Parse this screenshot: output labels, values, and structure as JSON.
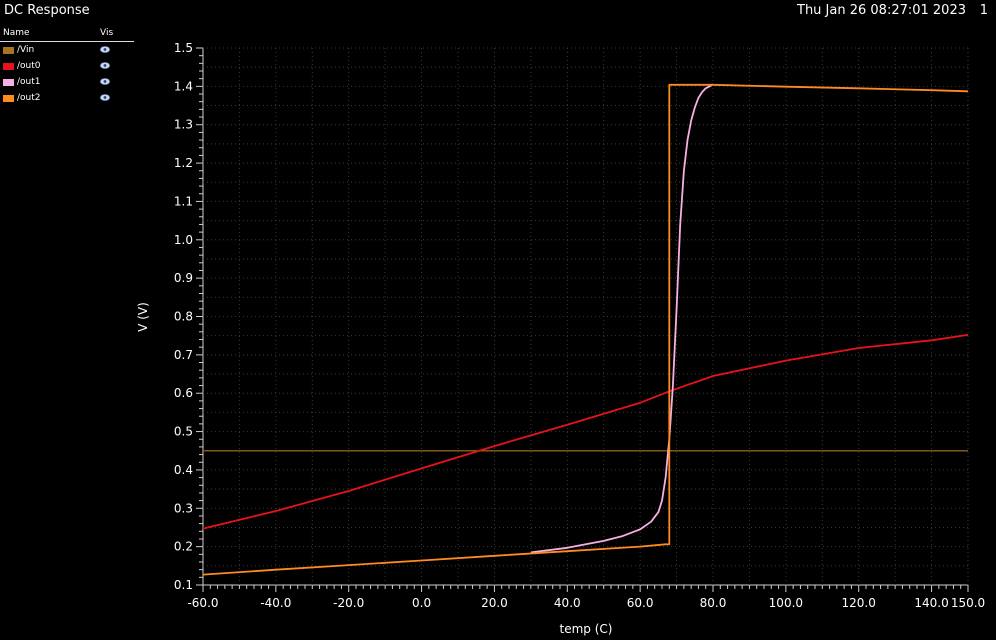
{
  "window": {
    "title": "DC Response",
    "date": "Thu Jan 26 08:27:01 2023",
    "page": "1"
  },
  "legend": {
    "header_name": "Name",
    "header_vis": "Vis",
    "icon": "eye-icon",
    "items": [
      {
        "name": "/Vin",
        "color": "#a9741f"
      },
      {
        "name": "/out0",
        "color": "#e8121a"
      },
      {
        "name": "/out1",
        "color": "#f8b0e4"
      },
      {
        "name": "/out2",
        "color": "#ff8a1f"
      }
    ]
  },
  "chart_data": {
    "type": "line",
    "xlabel": "temp (C)",
    "ylabel": "V (V)",
    "xlim": [
      -60,
      150
    ],
    "ylim": [
      0.1,
      1.5
    ],
    "x_ticks": [
      -60,
      -40,
      -20,
      0,
      20,
      40,
      60,
      80,
      100,
      120,
      140,
      150
    ],
    "x_tick_labels": [
      "-60.0",
      "-40.0",
      "-20.0",
      "0.0",
      "20.0",
      "40.0",
      "60.0",
      "80.0",
      "100.0",
      "120.0",
      "140.0",
      "150.0"
    ],
    "y_ticks": [
      0.1,
      0.2,
      0.3,
      0.4,
      0.5,
      0.6,
      0.7,
      0.8,
      0.9,
      1.0,
      1.1,
      1.2,
      1.3,
      1.4,
      1.5
    ],
    "y_tick_labels": [
      "0.1",
      "0.2",
      "0.3",
      "0.4",
      "0.5",
      "0.6",
      "0.7",
      "0.8",
      "0.9",
      "1.0",
      "1.1",
      "1.2",
      "1.3",
      "1.4",
      "1.5"
    ],
    "grid": true,
    "series": [
      {
        "name": "/Vin",
        "color": "#a9741f",
        "x": [
          -60,
          150
        ],
        "y": [
          0.45,
          0.45
        ]
      },
      {
        "name": "/out0",
        "color": "#e8121a",
        "x": [
          -60,
          -40,
          -20,
          0,
          20,
          40,
          60,
          68,
          80,
          100,
          120,
          140,
          150
        ],
        "y": [
          0.247,
          0.293,
          0.345,
          0.404,
          0.462,
          0.518,
          0.575,
          0.605,
          0.645,
          0.685,
          0.718,
          0.738,
          0.752
        ]
      },
      {
        "name": "/out1",
        "color": "#f8b0e4",
        "x": [
          30,
          40,
          50,
          55,
          60,
          63,
          65,
          66,
          67,
          68,
          69,
          70,
          71,
          72,
          73,
          74,
          75,
          76,
          77,
          78,
          79,
          80
        ],
        "y": [
          0.185,
          0.197,
          0.215,
          0.227,
          0.245,
          0.265,
          0.29,
          0.32,
          0.38,
          0.48,
          0.62,
          0.82,
          1.04,
          1.18,
          1.26,
          1.31,
          1.345,
          1.37,
          1.385,
          1.395,
          1.4,
          1.405
        ]
      },
      {
        "name": "/out2",
        "color": "#ff8a1f",
        "x": [
          -60,
          -40,
          -20,
          0,
          20,
          40,
          60,
          67,
          67,
          68,
          68,
          80,
          100,
          120,
          140,
          150
        ],
        "y": [
          0.127,
          0.14,
          0.152,
          0.164,
          0.176,
          0.188,
          0.2,
          0.206,
          0.206,
          0.206,
          1.404,
          1.404,
          1.399,
          1.395,
          1.39,
          1.387
        ]
      }
    ]
  }
}
